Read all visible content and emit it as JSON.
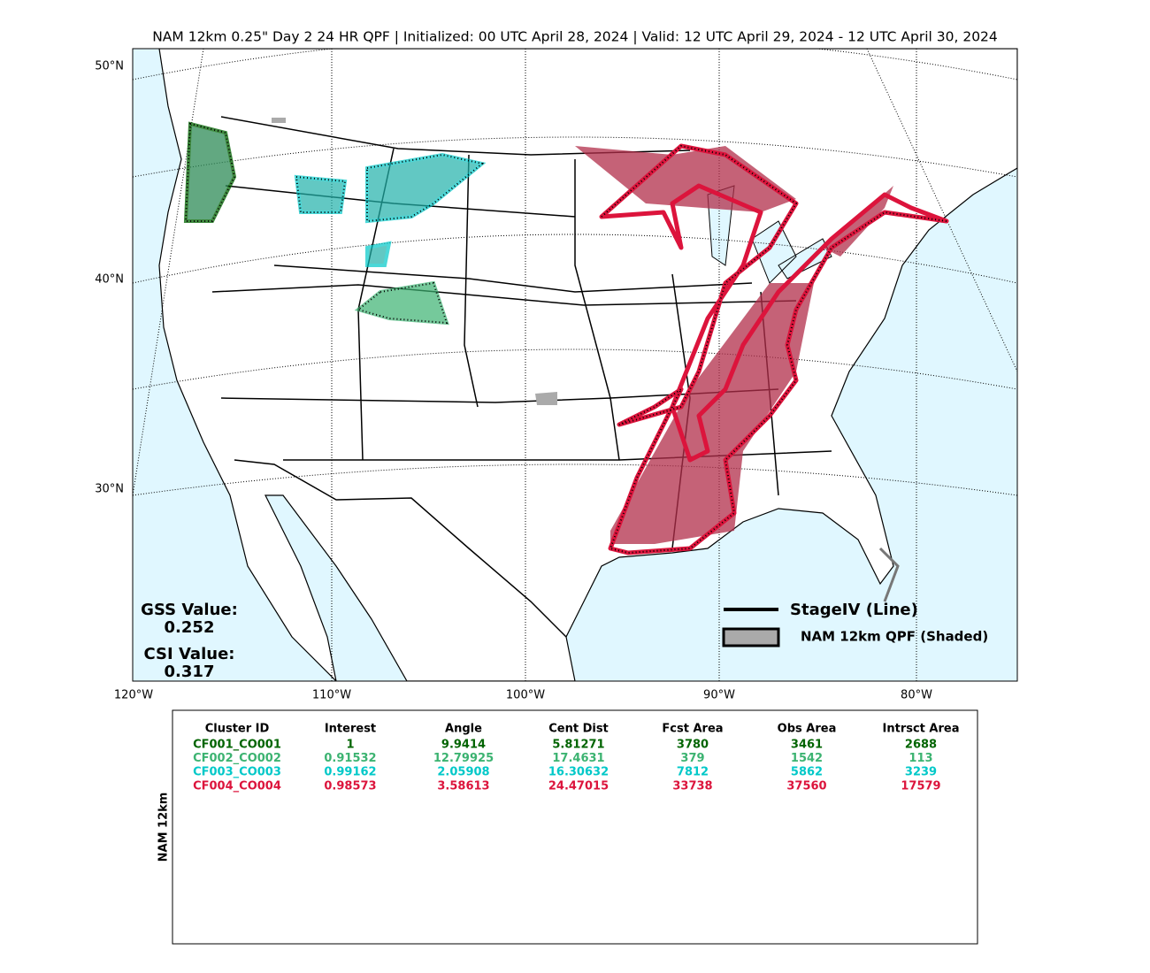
{
  "title": "NAM 12km 0.25\" Day 2 24 HR QPF | Initialized: 00 UTC April 28, 2024 | Valid: 12 UTC April 29, 2024 - 12 UTC April 30, 2024",
  "lat_labels": [
    "50°N",
    "40°N",
    "30°N"
  ],
  "lon_labels": [
    "120°W",
    "110°W",
    "100°W",
    "90°W",
    "80°W"
  ],
  "scores": [
    {
      "label": "GSS Value:",
      "value": "0.252"
    },
    {
      "label": "CSI Value:",
      "value": "0.317"
    }
  ],
  "legend": [
    "StageIV (Line)",
    "NAM 12km QPF (Shaded)"
  ],
  "table": {
    "side_label": "NAM 12km",
    "header": [
      "Cluster ID",
      "Interest",
      "Angle",
      "Cent Dist",
      "Fcst Area",
      "Obs Area",
      "Intrsct Area"
    ],
    "rows": [
      {
        "color": "#006400",
        "cells": [
          "CF001_CO001",
          "1",
          "9.9414",
          "5.81271",
          "3780",
          "3461",
          "2688"
        ]
      },
      {
        "color": "#3cb371",
        "cells": [
          "CF002_CO002",
          "0.91532",
          "12.79925",
          "17.4631",
          "379",
          "1542",
          "113"
        ]
      },
      {
        "color": "#00c8c8",
        "cells": [
          "CF003_CO003",
          "0.99162",
          "2.05908",
          "16.30632",
          "7812",
          "5862",
          "3239"
        ]
      },
      {
        "color": "#dc143c",
        "cells": [
          "CF004_CO004",
          "0.98573",
          "3.58613",
          "24.47015",
          "33738",
          "37560",
          "17579"
        ]
      }
    ]
  }
}
